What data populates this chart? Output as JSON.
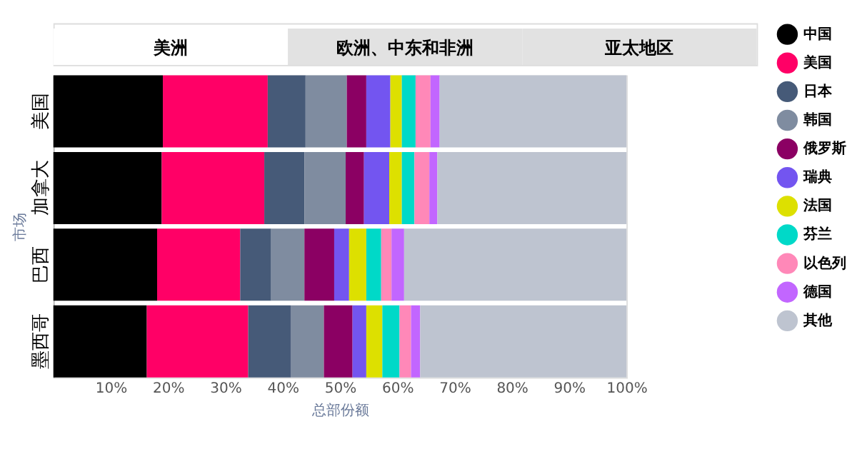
{
  "chart_data": {
    "type": "bar",
    "orientation": "horizontal",
    "stacked": true,
    "xlabel": "总部份额",
    "ylabel": "市场",
    "annotations": [
      "美洲",
      "欧洲、中东和非洲",
      "亚太地区"
    ],
    "categories": [
      "美国",
      "加拿大",
      "巴西",
      "墨西哥"
    ],
    "xlim": [
      0,
      100
    ],
    "xticks": [
      {
        "value": 10,
        "label": "10%"
      },
      {
        "value": 20,
        "label": "20%"
      },
      {
        "value": 30,
        "label": "30%"
      },
      {
        "value": 40,
        "label": "40%"
      },
      {
        "value": 50,
        "label": "50%"
      },
      {
        "value": 60,
        "label": "60%"
      },
      {
        "value": 70,
        "label": "70%"
      },
      {
        "value": 80,
        "label": "80%"
      },
      {
        "value": 90,
        "label": "90%"
      },
      {
        "value": 100,
        "label": "100%"
      }
    ],
    "grid": false,
    "legend": "right",
    "series": [
      {
        "name": "中国",
        "color": "#000000",
        "values": [
          19.1,
          18.9,
          18.1,
          16.3
        ]
      },
      {
        "name": "美国",
        "color": "#ff0066",
        "values": [
          18.3,
          17.9,
          14.5,
          17.7
        ]
      },
      {
        "name": "日本",
        "color": "#465a78",
        "values": [
          6.6,
          7.0,
          5.4,
          7.4
        ]
      },
      {
        "name": "韩国",
        "color": "#7f8ca0",
        "values": [
          7.2,
          7.2,
          5.8,
          5.8
        ]
      },
      {
        "name": "俄罗斯",
        "color": "#8b0063",
        "values": [
          3.4,
          3.2,
          5.2,
          5.0
        ]
      },
      {
        "name": "瑞典",
        "color": "#7355f0",
        "values": [
          4.2,
          4.4,
          2.6,
          2.4
        ]
      },
      {
        "name": "法国",
        "color": "#dde000",
        "values": [
          2.0,
          2.2,
          3.0,
          2.8
        ]
      },
      {
        "name": "芬兰",
        "color": "#00d9c8",
        "values": [
          2.4,
          2.2,
          2.6,
          3.0
        ]
      },
      {
        "name": "以色列",
        "color": "#ff88b8",
        "values": [
          2.6,
          2.6,
          1.8,
          2.0
        ]
      },
      {
        "name": "德国",
        "color": "#c266ff",
        "values": [
          1.6,
          1.4,
          2.2,
          1.6
        ]
      },
      {
        "name": "其他",
        "color": "#bec4d0",
        "values": [
          32.6,
          33.0,
          38.8,
          36.0
        ]
      }
    ]
  }
}
